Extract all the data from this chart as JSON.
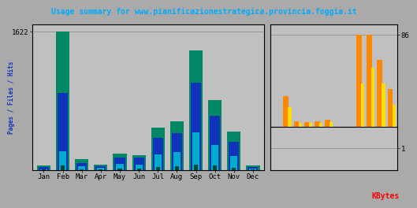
{
  "title": "Usage summary for www.pianificazionestrategica.provincia.foggia.it",
  "title_color": "#00aaff",
  "months": [
    "Jan",
    "Feb",
    "Mar",
    "Apr",
    "May",
    "Jun",
    "Jul",
    "Aug",
    "Sep",
    "Oct",
    "Nov",
    "Dec"
  ],
  "hits": [
    55,
    1622,
    125,
    62,
    190,
    175,
    490,
    570,
    1400,
    820,
    450,
    55
  ],
  "files": [
    32,
    900,
    82,
    38,
    140,
    140,
    370,
    430,
    1020,
    630,
    330,
    32
  ],
  "pages": [
    10,
    220,
    42,
    20,
    72,
    65,
    185,
    205,
    440,
    295,
    165,
    14
  ],
  "uniq": [
    6,
    55,
    10,
    6,
    14,
    12,
    32,
    38,
    62,
    48,
    27,
    6
  ],
  "hits_color": "#008866",
  "files_color": "#1133bb",
  "pages_color": "#00aacc",
  "uniq_color": "#004433",
  "kb_hits": [
    0,
    28,
    5,
    4,
    5,
    6,
    0,
    0,
    86,
    86,
    62,
    35
  ],
  "kb_pages": [
    0,
    18,
    3,
    3,
    3,
    4,
    0,
    0,
    40,
    55,
    40,
    20
  ],
  "kb_hits_color": "#ff8800",
  "kb_pages_color": "#ffdd00",
  "left_ylim": [
    0,
    1700
  ],
  "left_ytick": 1622,
  "right_ytick_top": 86,
  "right_ytick_bot": 1,
  "bg_color": "#aaaaaa",
  "plot_bg": "#c0c0c0",
  "border_color": "#000000",
  "ylabel_left": "Pages / Files / Hits",
  "ylabel_right": "KBytes",
  "grid_color": "#909090"
}
